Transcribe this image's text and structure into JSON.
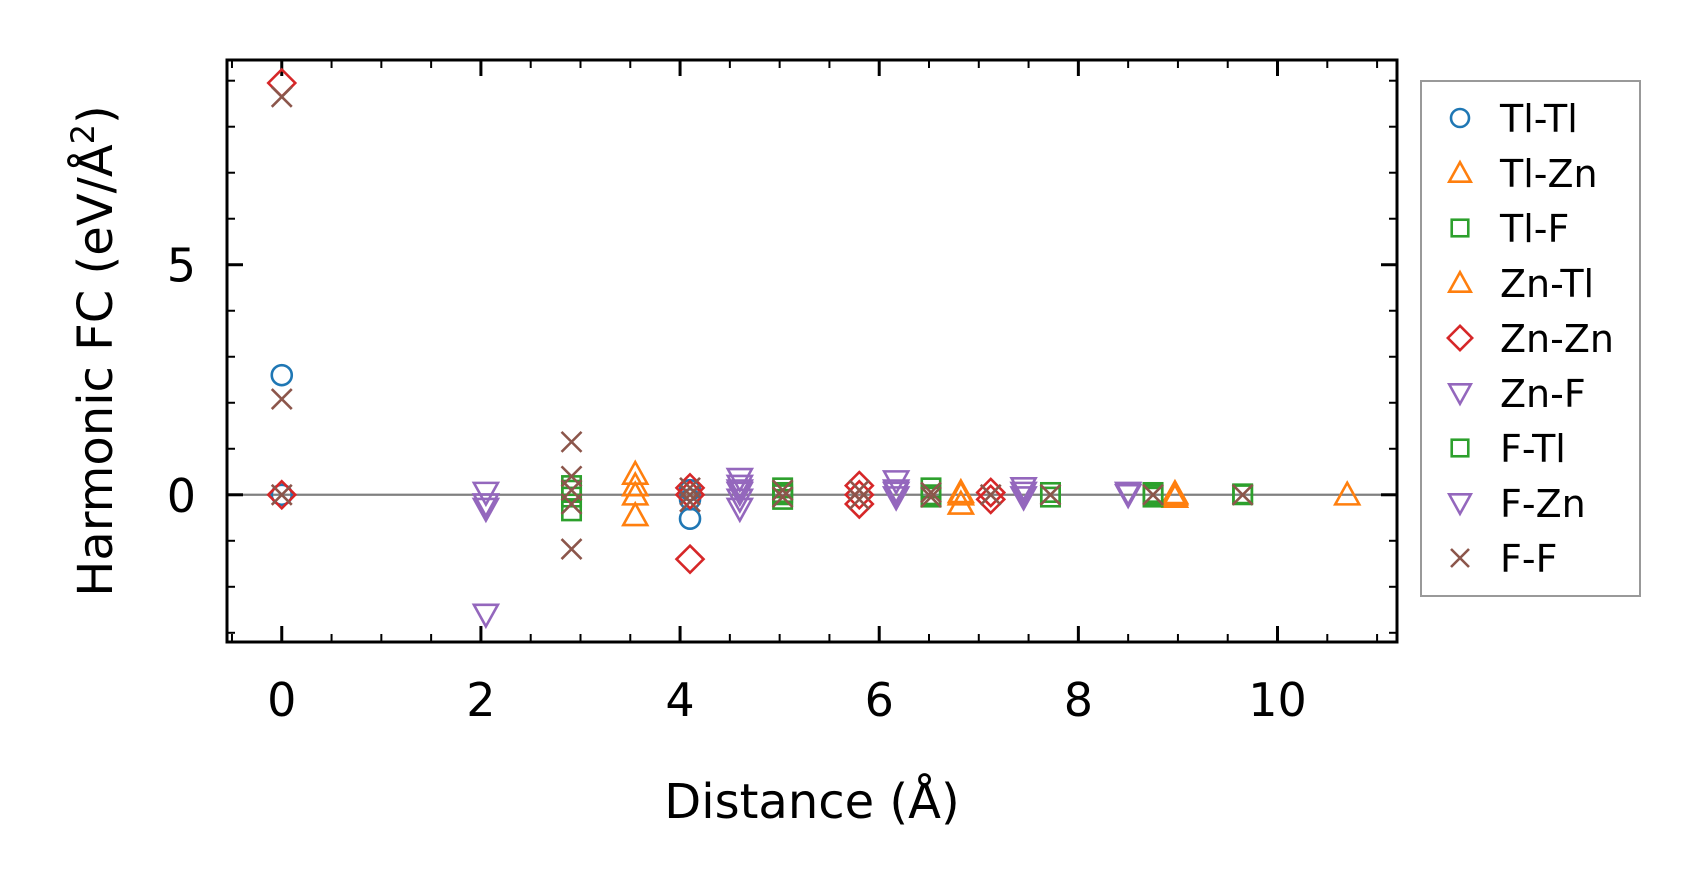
{
  "chart_data": {
    "type": "scatter",
    "title": "",
    "xlabel": "Distance (Å)",
    "ylabel_main": "Harmonic FC (eV/Å",
    "ylabel_sup": "2",
    "ylabel_close": ")",
    "xlim": [
      -0.55,
      11.2
    ],
    "ylim": [
      -3.2,
      9.45
    ],
    "xticks": [
      0,
      2,
      4,
      6,
      8,
      10
    ],
    "xtick_labels": [
      "0",
      "2",
      "4",
      "6",
      "8",
      "10"
    ],
    "yticks": [
      0,
      5
    ],
    "ytick_labels": [
      "0",
      "5"
    ],
    "zero_line": true,
    "grid": false,
    "legend_position": "outside-right",
    "series": [
      {
        "name": "Tl-Tl",
        "marker": "circle",
        "color": "#1f77b4",
        "points": [
          [
            0,
            2.6
          ],
          [
            0,
            0
          ],
          [
            4.1,
            -0.52
          ],
          [
            4.1,
            0.1
          ],
          [
            4.1,
            -0.1
          ]
        ]
      },
      {
        "name": "Tl-Zn",
        "marker": "triangle-up",
        "color": "#ff7f0e",
        "points": [
          [
            3.55,
            0.45
          ],
          [
            3.55,
            0
          ],
          [
            3.55,
            -0.45
          ],
          [
            6.82,
            0.05
          ],
          [
            6.82,
            -0.2
          ],
          [
            8.97,
            0.03
          ],
          [
            8.97,
            -0.05
          ],
          [
            10.7,
            0.0
          ]
        ]
      },
      {
        "name": "Tl-F",
        "marker": "square",
        "color": "#2ca02c",
        "points": [
          [
            2.91,
            0.2
          ],
          [
            2.91,
            -0.05
          ],
          [
            2.91,
            -0.35
          ],
          [
            5.03,
            0.15
          ],
          [
            5.03,
            0.05
          ],
          [
            5.03,
            -0.1
          ],
          [
            6.52,
            0.15
          ],
          [
            6.52,
            -0.05
          ],
          [
            7.72,
            0.05
          ],
          [
            7.72,
            -0.05
          ],
          [
            8.75,
            0.05
          ],
          [
            8.75,
            -0.05
          ],
          [
            9.65,
            0.02
          ]
        ]
      },
      {
        "name": "Zn-Tl",
        "marker": "triangle-up",
        "color": "#ff7f0e",
        "points": [
          [
            3.55,
            0.2
          ],
          [
            6.82,
            0.0
          ],
          [
            8.97,
            0.0
          ]
        ]
      },
      {
        "name": "Zn-Zn",
        "marker": "diamond",
        "color": "#d62728",
        "points": [
          [
            0,
            8.95
          ],
          [
            0,
            0
          ],
          [
            4.1,
            0.15
          ],
          [
            4.1,
            0.0
          ],
          [
            4.1,
            -1.4
          ],
          [
            5.8,
            0.2
          ],
          [
            5.8,
            0.0
          ],
          [
            5.8,
            -0.2
          ],
          [
            7.12,
            0.05
          ],
          [
            7.12,
            -0.1
          ]
        ]
      },
      {
        "name": "Zn-F",
        "marker": "triangle-down",
        "color": "#9467bd",
        "points": [
          [
            2.05,
            0.05
          ],
          [
            2.05,
            -0.3
          ],
          [
            2.05,
            -2.6
          ],
          [
            4.6,
            0.35
          ],
          [
            4.6,
            0.2
          ],
          [
            4.6,
            0.05
          ],
          [
            4.6,
            -0.1
          ],
          [
            4.6,
            -0.3
          ],
          [
            6.17,
            0.3
          ],
          [
            6.17,
            0.05
          ],
          [
            6.17,
            -0.05
          ],
          [
            7.45,
            0.15
          ],
          [
            7.45,
            -0.05
          ],
          [
            8.5,
            0.05
          ]
        ]
      },
      {
        "name": "F-Tl",
        "marker": "square",
        "color": "#2ca02c",
        "points": [
          [
            2.91,
            0.1
          ],
          [
            5.03,
            0.0
          ],
          [
            6.52,
            0.0
          ],
          [
            8.75,
            0.0
          ],
          [
            9.65,
            0.0
          ]
        ]
      },
      {
        "name": "F-Zn",
        "marker": "triangle-down",
        "color": "#9467bd",
        "points": [
          [
            2.05,
            -0.2
          ],
          [
            4.6,
            0.1
          ],
          [
            6.17,
            0.1
          ],
          [
            7.45,
            0.05
          ],
          [
            8.5,
            0.0
          ]
        ]
      },
      {
        "name": "F-F",
        "marker": "x",
        "color": "#8c564b",
        "points": [
          [
            0,
            8.65
          ],
          [
            0,
            2.08
          ],
          [
            0,
            0.0
          ],
          [
            2.91,
            1.15
          ],
          [
            2.91,
            0.4
          ],
          [
            2.91,
            0.1
          ],
          [
            2.91,
            -0.2
          ],
          [
            2.91,
            -1.18
          ],
          [
            4.1,
            0.15
          ],
          [
            4.1,
            0.0
          ],
          [
            4.1,
            -0.15
          ],
          [
            5.03,
            0.1
          ],
          [
            5.03,
            -0.05
          ],
          [
            5.8,
            0.1
          ],
          [
            5.8,
            -0.1
          ],
          [
            6.52,
            0.05
          ],
          [
            6.52,
            -0.05
          ],
          [
            7.12,
            0.0
          ],
          [
            7.72,
            0.0
          ],
          [
            8.75,
            0.0
          ],
          [
            9.65,
            0.0
          ]
        ]
      }
    ]
  }
}
